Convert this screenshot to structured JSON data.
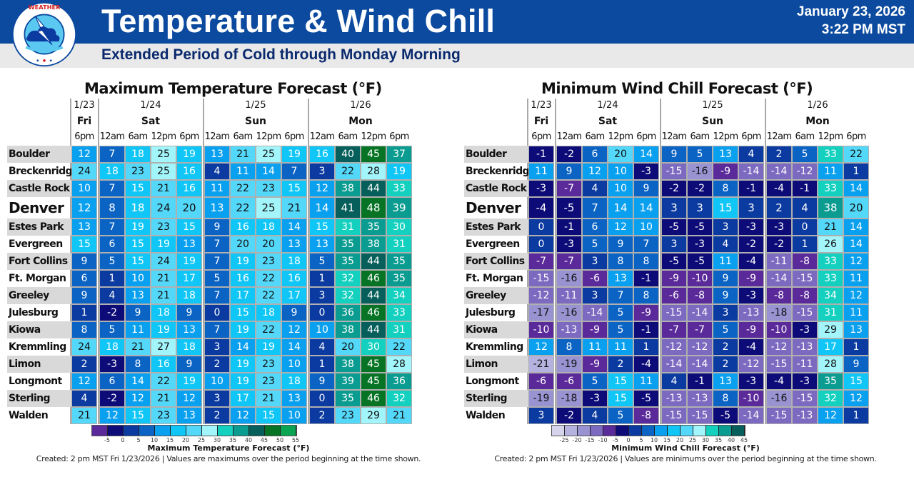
{
  "header": {
    "title": "Temperature & Wind Chill",
    "subtitle": "Extended Period of Cold through Monday Morning",
    "date": "January 23, 2026",
    "time": "3:22 PM MST",
    "logo_text": "NATIONAL WEATHER SERVICE",
    "colors": {
      "band": "#0b4a9e",
      "subband": "#e9e9e9",
      "subtitle": "#0b2a6e"
    }
  },
  "columns": {
    "groups": [
      {
        "date": "1/23",
        "day": "Fri",
        "times": [
          "6pm"
        ]
      },
      {
        "date": "1/24",
        "day": "Sat",
        "times": [
          "12am",
          "6am",
          "12pm",
          "6pm"
        ]
      },
      {
        "date": "1/25",
        "day": "Sun",
        "times": [
          "12am",
          "6am",
          "12pm",
          "6pm"
        ]
      },
      {
        "date": "1/26",
        "day": "Mon",
        "times": [
          "12am",
          "6am",
          "12pm",
          "6pm"
        ]
      }
    ]
  },
  "locations": [
    "Boulder",
    "Breckenridge",
    "Castle Rock",
    "Denver",
    "Estes Park",
    "Evergreen",
    "Fort Collins",
    "Ft. Morgan",
    "Greeley",
    "Julesburg",
    "Kiowa",
    "Kremmling",
    "Limon",
    "Longmont",
    "Sterling",
    "Walden"
  ],
  "max_temp": {
    "title": "Maximum Temperature Forecast (°F)",
    "legend_label": "Maximum Temperature Forecast (°F)",
    "legend_ticks": [
      "-5",
      "0",
      "5",
      "10",
      "15",
      "20",
      "25",
      "30",
      "35",
      "40",
      "45",
      "50",
      "55"
    ],
    "legend_colors": [
      "#5b2a9a",
      "#0d0b78",
      "#0b3aa0",
      "#0b63c4",
      "#0aa0f0",
      "#10c6f6",
      "#54d8fa",
      "#a2f6fb",
      "#13d0bf",
      "#0a9c90",
      "#065f5a",
      "#077325",
      "#0aa552"
    ],
    "created": "Created: 2 pm MST Fri 1/23/2026  |  Values are maximums over the period beginning at the time shown.",
    "rows": [
      [
        12,
        7,
        18,
        25,
        19,
        13,
        21,
        25,
        19,
        16,
        40,
        45,
        37
      ],
      [
        24,
        18,
        23,
        25,
        16,
        4,
        11,
        14,
        7,
        3,
        22,
        28,
        19
      ],
      [
        10,
        7,
        15,
        21,
        16,
        11,
        22,
        23,
        15,
        12,
        38,
        44,
        33
      ],
      [
        12,
        8,
        18,
        24,
        20,
        13,
        22,
        25,
        21,
        14,
        41,
        48,
        39
      ],
      [
        13,
        7,
        19,
        23,
        15,
        9,
        16,
        18,
        14,
        15,
        31,
        35,
        30
      ],
      [
        15,
        6,
        15,
        19,
        13,
        7,
        20,
        20,
        13,
        13,
        35,
        38,
        31
      ],
      [
        9,
        5,
        15,
        24,
        19,
        7,
        19,
        23,
        18,
        5,
        35,
        44,
        35
      ],
      [
        6,
        1,
        10,
        21,
        17,
        5,
        16,
        22,
        16,
        1,
        32,
        46,
        35
      ],
      [
        9,
        4,
        13,
        21,
        18,
        7,
        17,
        22,
        17,
        3,
        32,
        44,
        34
      ],
      [
        1,
        -2,
        9,
        18,
        9,
        0,
        15,
        18,
        9,
        0,
        36,
        46,
        33
      ],
      [
        8,
        5,
        11,
        19,
        13,
        7,
        19,
        22,
        12,
        10,
        38,
        44,
        31
      ],
      [
        24,
        18,
        21,
        27,
        18,
        3,
        14,
        19,
        14,
        4,
        20,
        30,
        22
      ],
      [
        2,
        -3,
        8,
        16,
        9,
        2,
        19,
        23,
        10,
        1,
        38,
        45,
        28
      ],
      [
        12,
        6,
        14,
        22,
        19,
        10,
        19,
        23,
        18,
        9,
        39,
        45,
        36
      ],
      [
        4,
        -2,
        12,
        21,
        12,
        3,
        17,
        21,
        13,
        0,
        35,
        46,
        32
      ],
      [
        21,
        12,
        15,
        23,
        13,
        2,
        12,
        15,
        10,
        2,
        23,
        29,
        21
      ]
    ]
  },
  "wind_chill": {
    "title": "Minimum Wind Chill Forecast (°F)",
    "legend_label": "Minimum Wind Chill Forecast (°F)",
    "legend_ticks": [
      "-25",
      "-20",
      "-15",
      "-10",
      "-5",
      "0",
      "5",
      "10",
      "15",
      "20",
      "25",
      "30",
      "35",
      "40",
      "45"
    ],
    "legend_colors": [
      "#d6d4ec",
      "#b5b2e0",
      "#9a93d2",
      "#7c69c0",
      "#5b2a9a",
      "#0d0b78",
      "#0b3aa0",
      "#0b63c4",
      "#0aa0f0",
      "#10c6f6",
      "#54d8fa",
      "#a2f6fb",
      "#13d0bf",
      "#0a9c90",
      "#065f5a"
    ],
    "created": "Created: 2 pm MST Fri 1/23/2026  |  Values are minimums over the period beginning at the time shown.",
    "rows": [
      [
        -1,
        -2,
        6,
        20,
        14,
        9,
        5,
        13,
        4,
        2,
        5,
        33,
        22
      ],
      [
        11,
        9,
        12,
        10,
        -3,
        -15,
        -16,
        -9,
        -14,
        -14,
        -12,
        11,
        1
      ],
      [
        -3,
        -7,
        4,
        10,
        9,
        -2,
        -2,
        8,
        -1,
        -4,
        -1,
        33,
        14
      ],
      [
        -4,
        -5,
        7,
        14,
        14,
        3,
        3,
        15,
        3,
        2,
        4,
        38,
        20
      ],
      [
        0,
        -1,
        6,
        12,
        10,
        -5,
        -5,
        3,
        -3,
        -3,
        0,
        21,
        14
      ],
      [
        0,
        -3,
        5,
        9,
        7,
        3,
        -3,
        4,
        -2,
        -2,
        1,
        26,
        14
      ],
      [
        -7,
        -7,
        3,
        8,
        8,
        -5,
        -5,
        11,
        -4,
        -11,
        -8,
        33,
        12
      ],
      [
        -15,
        -16,
        -6,
        13,
        -1,
        -9,
        -10,
        9,
        -9,
        -14,
        -15,
        33,
        11
      ],
      [
        -12,
        -11,
        3,
        7,
        8,
        -6,
        -8,
        9,
        -3,
        -8,
        -8,
        34,
        12
      ],
      [
        -17,
        -16,
        -14,
        5,
        -9,
        -15,
        -14,
        3,
        -13,
        -18,
        -15,
        31,
        11
      ],
      [
        -10,
        -13,
        -9,
        5,
        -1,
        -7,
        -7,
        5,
        -9,
        -10,
        -3,
        29,
        13
      ],
      [
        12,
        8,
        11,
        11,
        1,
        -12,
        -12,
        2,
        -4,
        -12,
        -13,
        17,
        1
      ],
      [
        -21,
        -19,
        -9,
        2,
        -4,
        -14,
        -14,
        2,
        -12,
        -15,
        -11,
        28,
        9
      ],
      [
        -6,
        -6,
        5,
        15,
        11,
        4,
        -1,
        13,
        -3,
        -4,
        -3,
        35,
        15
      ],
      [
        -19,
        -18,
        -3,
        15,
        -5,
        -13,
        -13,
        8,
        -10,
        -16,
        -15,
        32,
        12
      ],
      [
        3,
        -2,
        4,
        5,
        -8,
        -15,
        -15,
        -5,
        -14,
        -15,
        -13,
        12,
        1
      ]
    ]
  }
}
